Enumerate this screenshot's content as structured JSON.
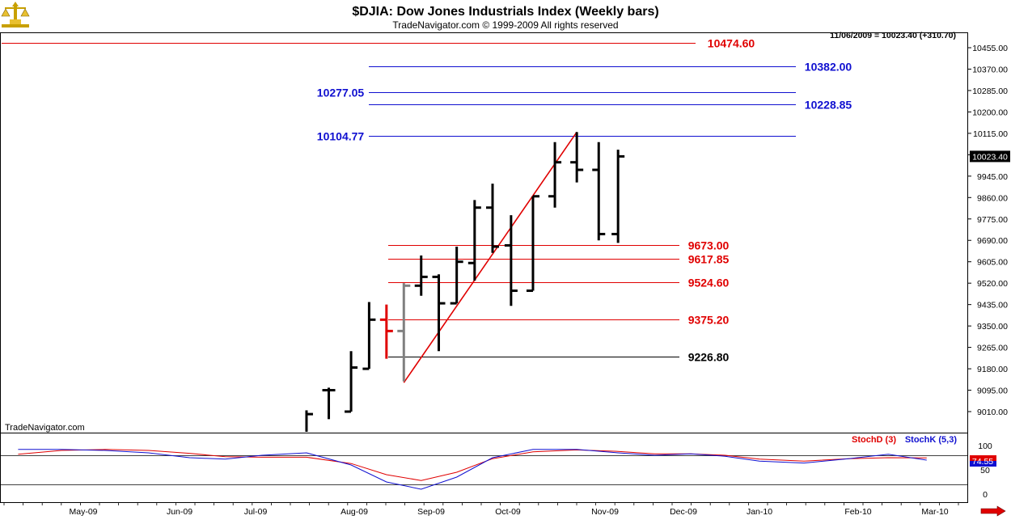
{
  "header": {
    "title": "$DJIA:  Dow Jones Industrials Index  (Weekly bars)",
    "subtitle": "TradeNavigator.com © 1999-2009 All rights reserved",
    "last_quote": "11/06/2009 = 10023.40 (+310.70)",
    "watermark": "TradeNavigator.com"
  },
  "chart_data": [
    {
      "type": "ohlc",
      "title": "$DJIA:  Dow Jones Industrials Index  (Weekly bars)",
      "ylim": [
        8980,
        10510
      ],
      "y_ticks": [
        "10455.00",
        "10370.00",
        "10285.00",
        "10200.00",
        "10115.00",
        "10030.00",
        "9945.00",
        "9860.00",
        "9775.00",
        "9690.00",
        "9605.00",
        "9520.00",
        "9435.00",
        "9350.00",
        "9265.00",
        "9180.00",
        "9095.00",
        "9010.00"
      ],
      "y_tick_values": [
        10455,
        10370,
        10285,
        10200,
        10115,
        10030,
        9945,
        9860,
        9775,
        9690,
        9605,
        9520,
        9435,
        9350,
        9265,
        9180,
        9095,
        9010
      ],
      "last_price_label": "10023.40",
      "last_price": 10023.4,
      "x_labels": [
        "May-09",
        "Jun-09",
        "Jul-09",
        "Aug-09",
        "Sep-09",
        "Oct-09",
        "Nov-09",
        "Dec-09",
        "Jan-10",
        "Feb-10",
        "Mar-10"
      ],
      "bars": [
        {
          "date": "2009-07-17",
          "open": 8900,
          "high": 9015,
          "low": 8880,
          "close": 9000,
          "color": "#000000"
        },
        {
          "date": "2009-07-24",
          "open": 9095,
          "high": 9105,
          "low": 8980,
          "close": 9095,
          "color": "#000000"
        },
        {
          "date": "2009-07-31",
          "open": 9010,
          "high": 9250,
          "low": 9010,
          "close": 9185,
          "color": "#000000"
        },
        {
          "date": "2009-08-07",
          "open": 9180,
          "high": 9445,
          "low": 9180,
          "close": 9375,
          "color": "#000000"
        },
        {
          "date": "2009-08-14",
          "open": 9375,
          "high": 9435,
          "low": 9220,
          "close": 9330,
          "color": "#e00000"
        },
        {
          "date": "2009-08-21",
          "open": 9330,
          "high": 9520,
          "low": 9130,
          "close": 9510,
          "color": "#808080"
        },
        {
          "date": "2009-08-28",
          "open": 9510,
          "high": 9630,
          "low": 9470,
          "close": 9545,
          "color": "#000000"
        },
        {
          "date": "2009-09-04",
          "open": 9545,
          "high": 9555,
          "low": 9250,
          "close": 9440,
          "color": "#000000"
        },
        {
          "date": "2009-09-11",
          "open": 9440,
          "high": 9665,
          "low": 9440,
          "close": 9605,
          "color": "#000000"
        },
        {
          "date": "2009-09-18",
          "open": 9600,
          "high": 9850,
          "low": 9530,
          "close": 9820,
          "color": "#000000"
        },
        {
          "date": "2009-09-25",
          "open": 9820,
          "high": 9915,
          "low": 9640,
          "close": 9665,
          "color": "#000000"
        },
        {
          "date": "2009-10-02",
          "open": 9670,
          "high": 9790,
          "low": 9430,
          "close": 9490,
          "color": "#000000"
        },
        {
          "date": "2009-10-09",
          "open": 9490,
          "high": 9865,
          "low": 9490,
          "close": 9865,
          "color": "#000000"
        },
        {
          "date": "2009-10-16",
          "open": 9865,
          "high": 10080,
          "low": 9820,
          "close": 10000,
          "color": "#000000"
        },
        {
          "date": "2009-10-23",
          "open": 10000,
          "high": 10120,
          "low": 9920,
          "close": 9970,
          "color": "#000000"
        },
        {
          "date": "2009-10-30",
          "open": 9970,
          "high": 10080,
          "low": 9690,
          "close": 9715,
          "color": "#000000"
        },
        {
          "date": "2009-11-06",
          "open": 9715,
          "high": 10050,
          "low": 9680,
          "close": 10023.4,
          "color": "#000000"
        }
      ],
      "levels": [
        {
          "label": "10474.60",
          "value": 10474.6,
          "color": "#e00000"
        },
        {
          "label": "10382.00",
          "value": 10382.0,
          "color": "#1010d0"
        },
        {
          "label": "10277.05",
          "value": 10277.05,
          "color": "#1010d0"
        },
        {
          "label": "10228.85",
          "value": 10228.85,
          "color": "#1010d0"
        },
        {
          "label": "10104.77",
          "value": 10104.77,
          "color": "#1010d0"
        },
        {
          "label": "9673.00",
          "value": 9673.0,
          "color": "#e00000"
        },
        {
          "label": "9617.85",
          "value": 9617.85,
          "color": "#e00000"
        },
        {
          "label": "9524.60",
          "value": 9524.6,
          "color": "#e00000"
        },
        {
          "label": "9375.20",
          "value": 9375.2,
          "color": "#e00000"
        },
        {
          "label": "9226.80",
          "value": 9226.8,
          "color": "#000000"
        }
      ],
      "trendline": {
        "from": {
          "date": "2009-08-21",
          "value": 9125
        },
        "to": {
          "date": "2009-10-23",
          "value": 10120
        },
        "color": "#e00000"
      }
    },
    {
      "type": "line",
      "ylim": [
        0,
        100
      ],
      "y_ticks": [
        "100",
        "50",
        "0"
      ],
      "y_tick_values": [
        100,
        50,
        0
      ],
      "reference_lines": [
        80,
        20
      ],
      "legend": [
        {
          "name": "StochD (3)",
          "color": "#e00000"
        },
        {
          "name": "StochK (5,3)",
          "color": "#1010d0"
        }
      ],
      "last_value_label": "74.55",
      "series": [
        {
          "name": "StochD (3)",
          "color": "#e00000",
          "points": [
            [
              "2009-04-10",
              82
            ],
            [
              "2009-04-24",
              90
            ],
            [
              "2009-05-08",
              92
            ],
            [
              "2009-05-22",
              90
            ],
            [
              "2009-06-05",
              84
            ],
            [
              "2009-06-19",
              77
            ],
            [
              "2009-07-03",
              76
            ],
            [
              "2009-07-17",
              76
            ],
            [
              "2009-07-31",
              63
            ],
            [
              "2009-08-14",
              40
            ],
            [
              "2009-08-28",
              28
            ],
            [
              "2009-09-11",
              45
            ],
            [
              "2009-09-25",
              73
            ],
            [
              "2009-10-09",
              87
            ],
            [
              "2009-10-23",
              91
            ],
            [
              "2009-11-06",
              88
            ],
            [
              "2009-11-20",
              83
            ],
            [
              "2009-12-04",
              83
            ],
            [
              "2009-12-18",
              80
            ],
            [
              "2010-01-01",
              72
            ],
            [
              "2010-01-15",
              68
            ],
            [
              "2010-01-29",
              73
            ],
            [
              "2010-02-12",
              75
            ],
            [
              "2010-02-26",
              74.55
            ]
          ]
        },
        {
          "name": "StochK (5,3)",
          "color": "#1010d0",
          "points": [
            [
              "2009-04-10",
              92
            ],
            [
              "2009-04-24",
              92
            ],
            [
              "2009-05-08",
              90
            ],
            [
              "2009-05-22",
              85
            ],
            [
              "2009-06-05",
              75
            ],
            [
              "2009-06-19",
              72
            ],
            [
              "2009-07-03",
              80
            ],
            [
              "2009-07-17",
              85
            ],
            [
              "2009-07-31",
              60
            ],
            [
              "2009-08-14",
              25
            ],
            [
              "2009-08-28",
              10
            ],
            [
              "2009-09-11",
              35
            ],
            [
              "2009-09-25",
              75
            ],
            [
              "2009-10-09",
              92
            ],
            [
              "2009-10-23",
              92
            ],
            [
              "2009-11-06",
              85
            ],
            [
              "2009-11-20",
              80
            ],
            [
              "2009-12-04",
              83
            ],
            [
              "2009-12-18",
              78
            ],
            [
              "2010-01-01",
              68
            ],
            [
              "2010-01-15",
              64
            ],
            [
              "2010-01-29",
              73
            ],
            [
              "2010-02-12",
              82
            ],
            [
              "2010-02-26",
              70
            ]
          ]
        }
      ]
    }
  ],
  "colors": {
    "accent_red": "#e00000",
    "accent_blue": "#1010d0",
    "gridline": "#000000",
    "background": "#ffffff"
  },
  "icons": {
    "logo": "balance-scale-icon",
    "nav_arrow": "red-arrow-right-icon"
  }
}
